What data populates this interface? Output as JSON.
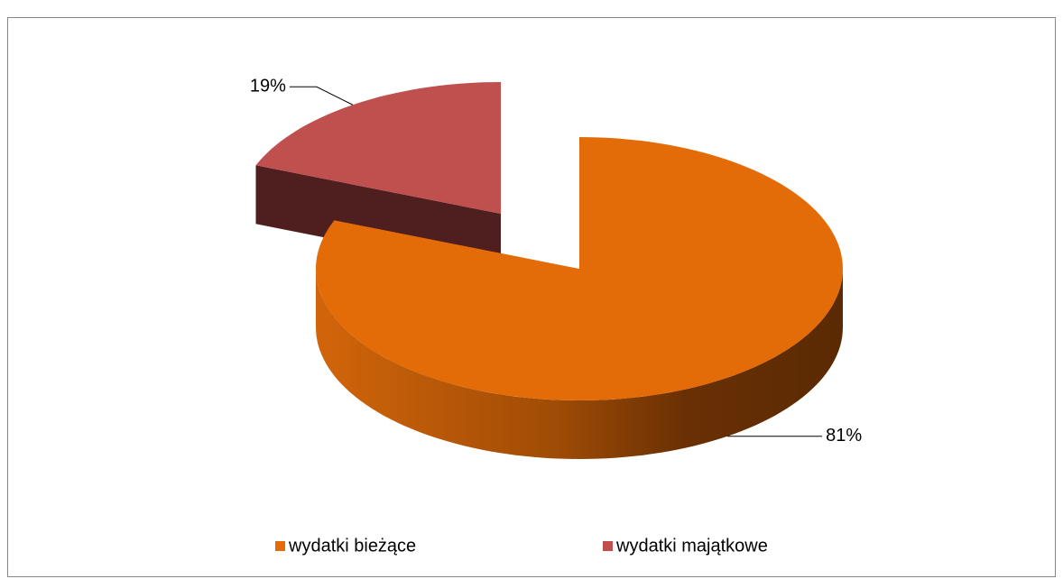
{
  "chart_data": {
    "type": "pie",
    "categories": [
      "wydatki bieżące",
      "wydatki majątkowe"
    ],
    "values": [
      81,
      19
    ],
    "value_labels": [
      "81%",
      "19%"
    ],
    "colors": [
      "#e36c09",
      "#c0504d"
    ],
    "legend": "bottom"
  }
}
